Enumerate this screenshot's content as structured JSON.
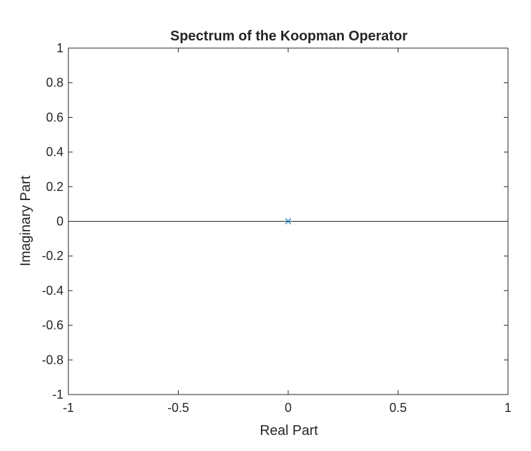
{
  "chart_data": {
    "type": "scatter",
    "title": "Spectrum of the Koopman Operator",
    "xlabel": "Real Part",
    "ylabel": "Imaginary Part",
    "xlim": [
      -1,
      1
    ],
    "ylim": [
      -1,
      1
    ],
    "x_ticks": [
      -1,
      -0.5,
      0,
      0.5,
      1
    ],
    "x_tick_labels": [
      "-1",
      "-0.5",
      "0",
      "0.5",
      "1"
    ],
    "y_ticks": [
      -1,
      -0.8,
      -0.6,
      -0.4,
      -0.2,
      0,
      0.2,
      0.4,
      0.6,
      0.8,
      1
    ],
    "y_tick_labels": [
      "-1",
      "-0.8",
      "-0.6",
      "-0.4",
      "-0.2",
      "0",
      "0.2",
      "0.4",
      "0.6",
      "0.8",
      "1"
    ],
    "grid": false,
    "reference_line_y": 0,
    "series": [
      {
        "marker": "x",
        "color": "#0072BD",
        "points": [
          {
            "x": 0,
            "y": 0
          }
        ]
      }
    ],
    "colors": {
      "axis": "#262626",
      "marker": "#0072BD",
      "background": "#ffffff"
    }
  }
}
